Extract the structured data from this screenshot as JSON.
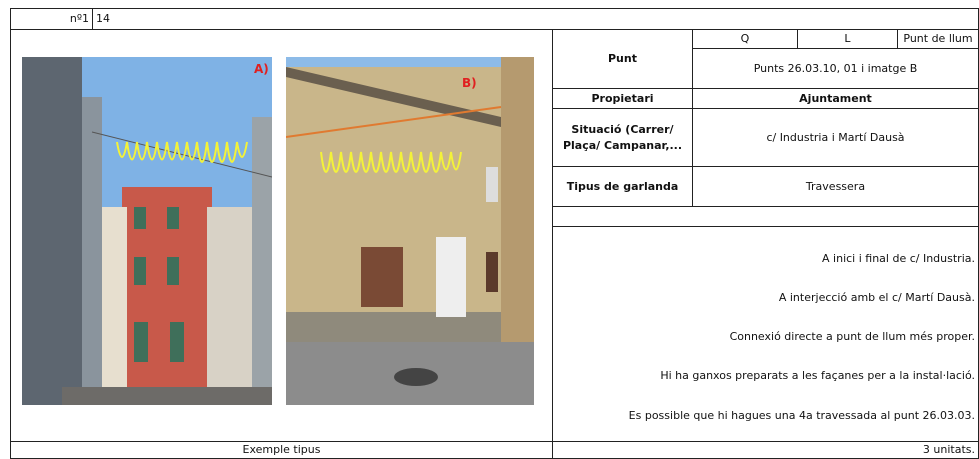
{
  "header": {
    "number_label": "nº1",
    "number": "14"
  },
  "photos": [
    {
      "label": "A)"
    },
    {
      "label": "B)"
    }
  ],
  "caption": "Exemple tipus",
  "table": {
    "punt": {
      "label": "Punt",
      "columns": [
        "Q",
        "L",
        "Punt de llum"
      ],
      "value": "Punts 26.03.10, 01 i imatge B"
    },
    "propietari": {
      "label": "Propietari",
      "value": "Ajuntament"
    },
    "situacio": {
      "label": "Situació (Carrer/ Plaça/ Campanar,...",
      "value": "c/ Industria i Martí Dausà"
    },
    "tipus": {
      "label": "Tipus de garlanda",
      "value": "Travessera"
    }
  },
  "notes": [
    "A inici i final de c/ Industria.",
    "A interjecció amb el c/ Martí Dausà.",
    "Connexió directe a punt de llum més proper.",
    "Hi ha ganxos preparats a les façanes per a la instal·lació.",
    "Es possible que hi hagues una 4a travessada al punt 26.03.03."
  ],
  "quantity": "3 unitats."
}
